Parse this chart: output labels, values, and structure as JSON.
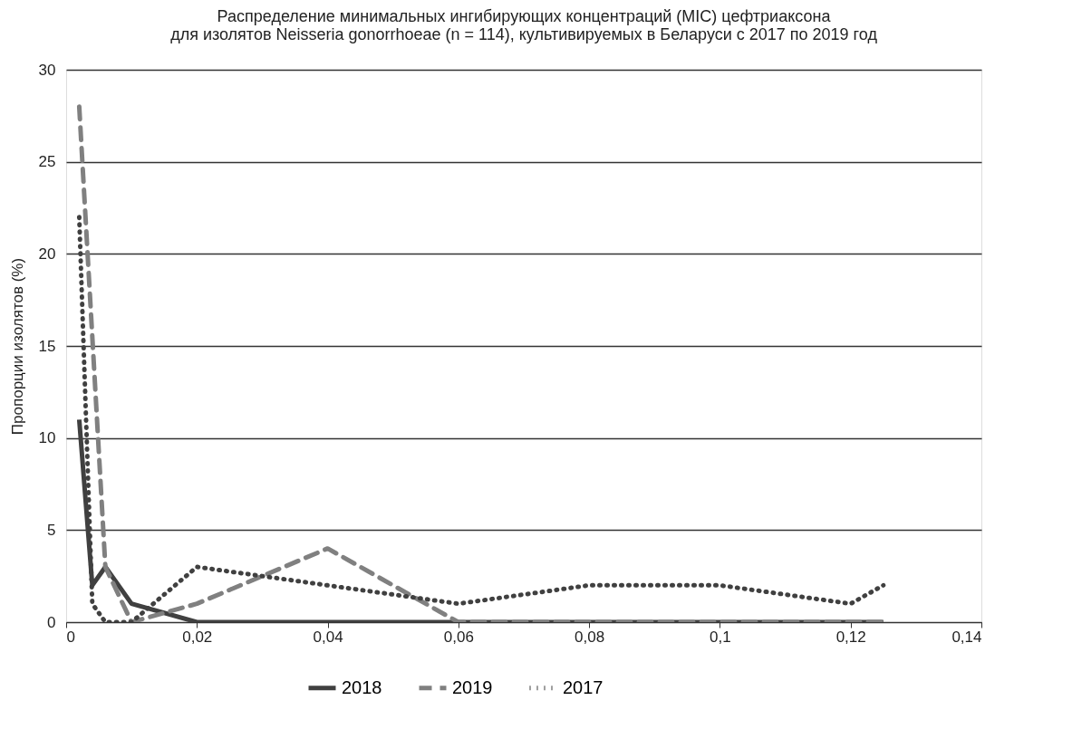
{
  "chart_data": {
    "type": "line",
    "title": [
      "Распределение минимальных ингибирующих концентраций (MIC) цефтриаксона",
      "для изолятов Neisseria gonorrhoeae (n = 114), культивируемых в Беларуси с 2017 по 2019 год"
    ],
    "ylabel": "Пропорции изолятов (%)",
    "xlim": [
      0,
      0.14
    ],
    "xticks": [
      {
        "value": 0,
        "label": "0"
      },
      {
        "value": 0.02,
        "label": "0,02"
      },
      {
        "value": 0.04,
        "label": "0,04"
      },
      {
        "value": 0.06,
        "label": "0,06"
      },
      {
        "value": 0.08,
        "label": "0,08"
      },
      {
        "value": 0.1,
        "label": "0,1"
      },
      {
        "value": 0.12,
        "label": "0,12"
      },
      {
        "value": 0.14,
        "label": "0,14"
      }
    ],
    "ylim": [
      0,
      30
    ],
    "yticks": [
      0,
      5,
      10,
      15,
      20,
      25,
      30
    ],
    "grid": "y",
    "legend": "bottom",
    "marker": "none",
    "series": [
      {
        "name": "2018",
        "color": "#404040",
        "line_style": "solid",
        "x": [
          0.002,
          0.004,
          0.006,
          0.01,
          0.02,
          0.04,
          0.06,
          0.125
        ],
        "values": [
          11,
          2,
          3,
          1,
          0,
          0,
          0,
          0
        ]
      },
      {
        "name": "2019",
        "color": "#808080",
        "line_style": "dashed",
        "x": [
          0.002,
          0.006,
          0.01,
          0.02,
          0.04,
          0.06,
          0.125
        ],
        "values": [
          28,
          3,
          0,
          1,
          4,
          0,
          0
        ]
      },
      {
        "name": "2017",
        "color": "#404040",
        "line_style": "dotted",
        "x": [
          0.002,
          0.004,
          0.006,
          0.01,
          0.02,
          0.04,
          0.06,
          0.08,
          0.1,
          0.12,
          0.125
        ],
        "values": [
          22,
          1,
          0,
          0,
          3,
          2,
          1,
          2,
          2,
          1,
          2
        ]
      }
    ]
  }
}
